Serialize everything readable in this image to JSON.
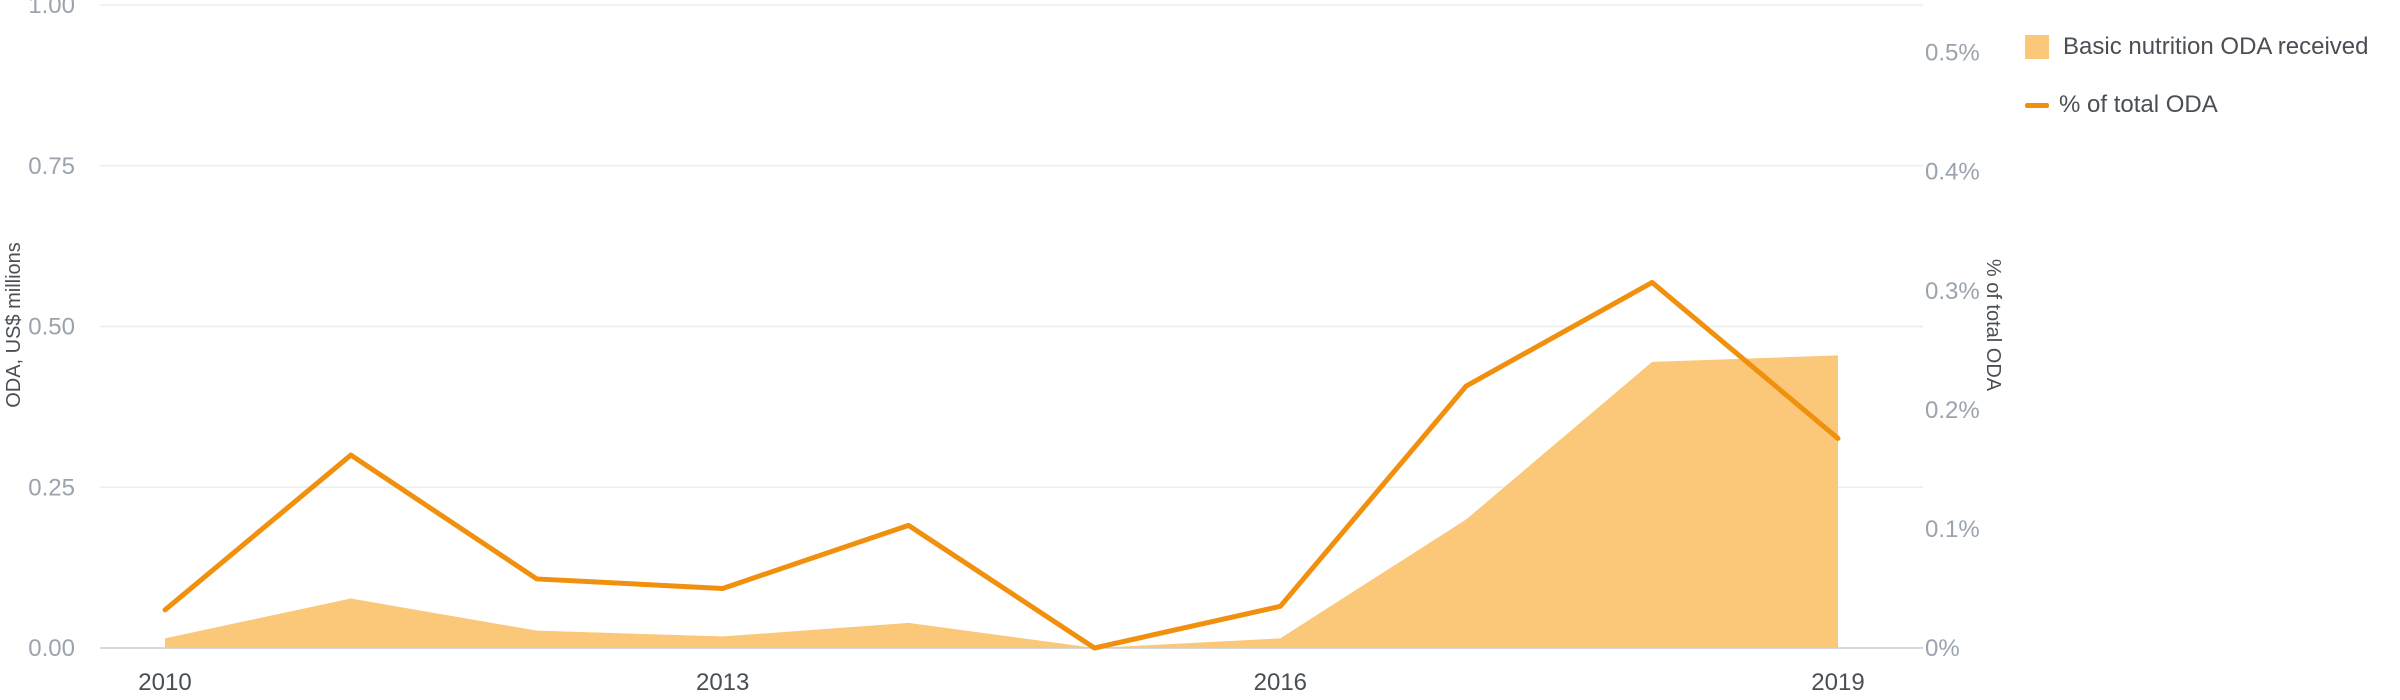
{
  "chart_data": {
    "type": "area",
    "x": [
      2010,
      2011,
      2012,
      2013,
      2014,
      2015,
      2016,
      2017,
      2018,
      2019
    ],
    "x_tick_labels": [
      "2010",
      "2013",
      "2016",
      "2019"
    ],
    "ylabel": "ODA, US$ millions",
    "y2label": "% of total ODA",
    "ylim": [
      0,
      1
    ],
    "y_ticks": [
      "0.00",
      "0.25",
      "0.50",
      "0.75",
      "1.00"
    ],
    "y2lim": [
      0,
      0.54
    ],
    "y2_ticks": [
      "0%",
      "0.1%",
      "0.2%",
      "0.3%",
      "0.4%",
      "0.5%"
    ],
    "grid": true,
    "legend_position": "top-right",
    "series": [
      {
        "name": "Basic nutrition ODA received",
        "type": "area",
        "axis": "left",
        "color": "#fac878",
        "values": [
          0.015,
          0.077,
          0.027,
          0.018,
          0.039,
          0.0,
          0.015,
          0.2,
          0.445,
          0.455
        ]
      },
      {
        "name": "% of total ODA",
        "type": "line",
        "axis": "right",
        "color": "#f0900d",
        "values": [
          0.032,
          0.162,
          0.058,
          0.05,
          0.103,
          0.0,
          0.035,
          0.22,
          0.307,
          0.176
        ]
      }
    ]
  },
  "legend": {
    "items": [
      {
        "label": "Basic nutrition ODA received",
        "color": "#fac878"
      },
      {
        "label": "% of total ODA",
        "color": "#f0900d"
      }
    ]
  },
  "colors": {
    "grid": "#ebedf0",
    "tick_text": "#9aa3ae",
    "label_text": "#4a4f55"
  }
}
